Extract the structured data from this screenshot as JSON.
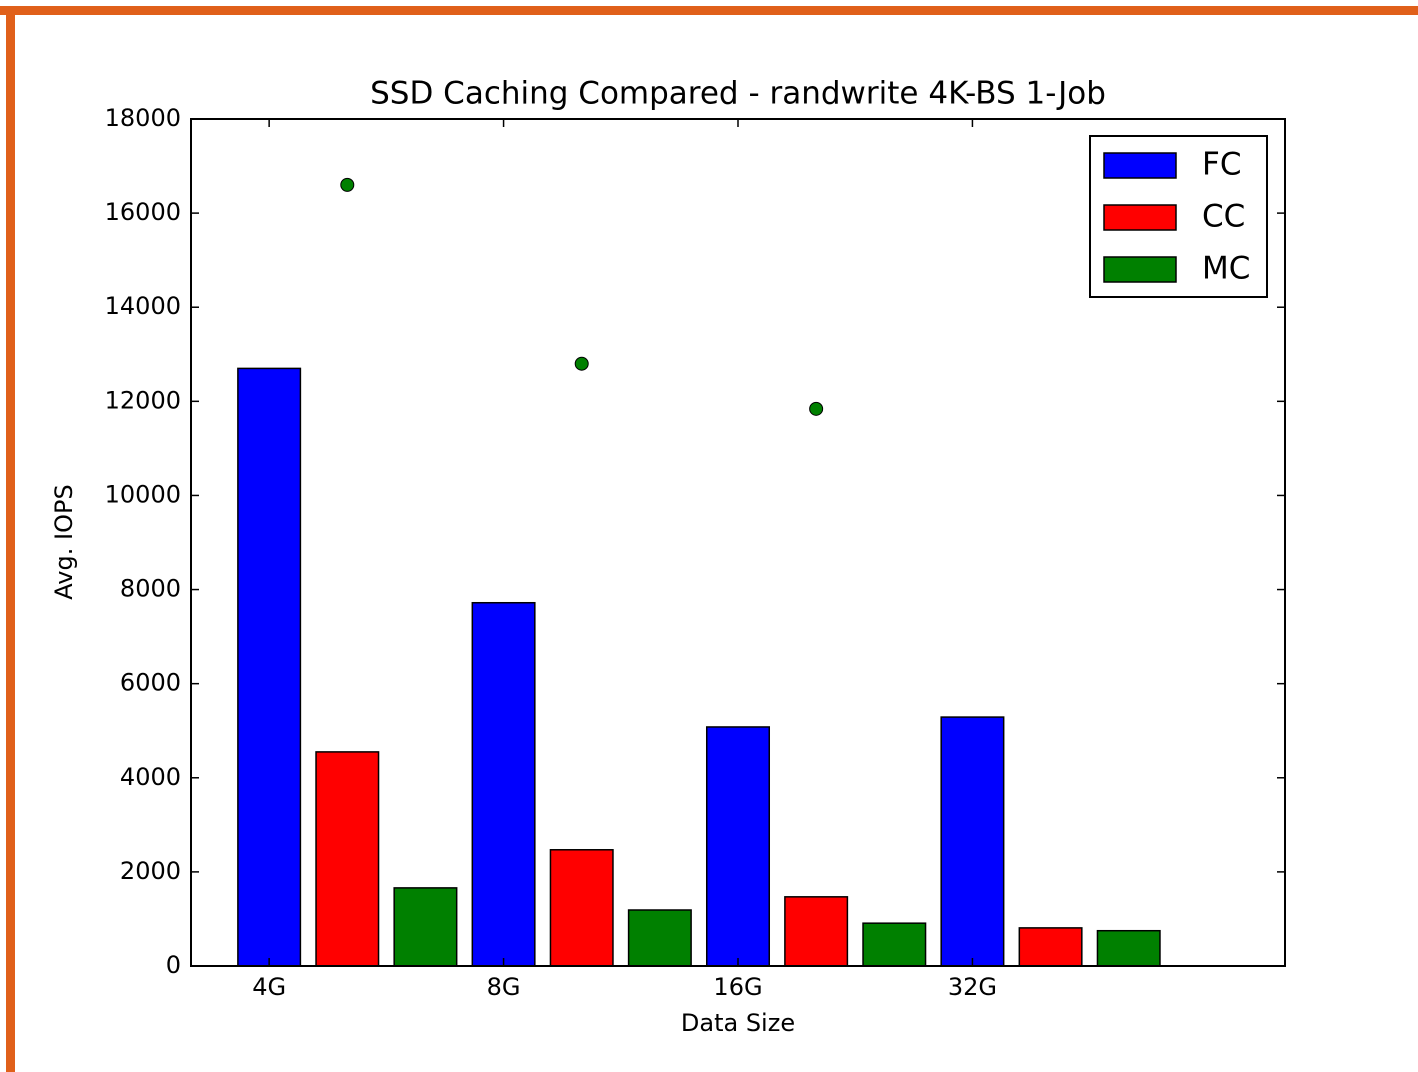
{
  "chart_data": {
    "type": "bar",
    "title": "SSD Caching Compared - randwrite 4K-BS 1-Job",
    "xlabel": "Data Size",
    "ylabel": "Avg. IOPS",
    "xlim": [
      -1,
      13
    ],
    "xticks": [
      {
        "value": 0,
        "label": "4G"
      },
      {
        "value": 3,
        "label": "8G"
      },
      {
        "value": 6,
        "label": "16G"
      },
      {
        "value": 9,
        "label": "32G"
      }
    ],
    "ylim": [
      0,
      18000
    ],
    "yticks": [
      0,
      2000,
      4000,
      6000,
      8000,
      10000,
      12000,
      14000,
      16000,
      18000
    ],
    "legend": "upper right",
    "series": [
      {
        "name": "FC",
        "color": "#0000ff",
        "type": "bar",
        "x": [
          0,
          3,
          6,
          9
        ],
        "values": [
          12700,
          7720,
          5080,
          5290
        ]
      },
      {
        "name": "CC",
        "color": "#ff0000",
        "type": "bar",
        "x": [
          1,
          4,
          7,
          10
        ],
        "values": [
          4550,
          2470,
          1470,
          810
        ]
      },
      {
        "name": "MC",
        "color": "#008000",
        "type": "bar",
        "x": [
          2,
          5,
          8,
          11
        ],
        "values": [
          1660,
          1190,
          910,
          750
        ]
      },
      {
        "color": "#008000",
        "type": "scatter",
        "x": [
          1,
          4,
          7
        ],
        "values": [
          16600,
          12800,
          11840
        ]
      }
    ]
  }
}
